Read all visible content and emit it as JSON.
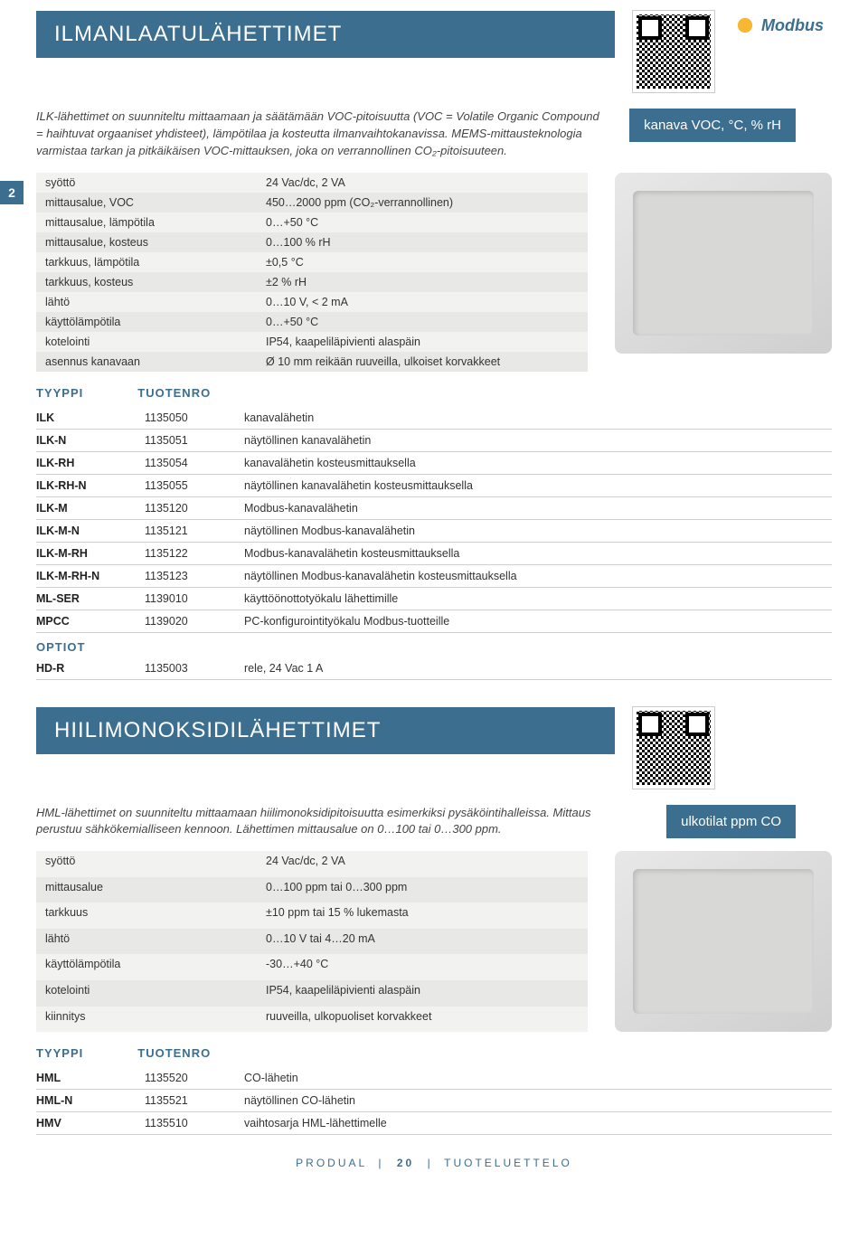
{
  "colors": {
    "primary": "#3b6e8f",
    "bg_light": "#f2f2f0",
    "bg_alt": "#e8e8e6",
    "text": "#333333",
    "border": "#cfcfcf"
  },
  "page_tab": "2",
  "modbus_label": "Modbus",
  "section1": {
    "title": "ILMANLAATULÄHETTIMET",
    "intro": "ILK-lähettimet on suunniteltu mittaamaan ja säätämään VOC-pitoisuutta (VOC = Volatile Organic Compound = haihtuvat orgaaniset yhdisteet), lämpötilaa ja kosteutta ilmanvaihtokanavissa. MEMS-mittausteknologia varmistaa tarkan ja pitkäikäisen VOC-mittauksen, joka on verrannollinen CO₂-pitoisuuteen.",
    "tag": "kanava VOC, °C, % rH",
    "specs": [
      [
        "syöttö",
        "24 Vac/dc, 2 VA"
      ],
      [
        "mittausalue, VOC",
        "450…2000 ppm (CO₂-verrannollinen)"
      ],
      [
        "mittausalue, lämpötila",
        "0…+50 °C"
      ],
      [
        "mittausalue, kosteus",
        "0…100 % rH"
      ],
      [
        "tarkkuus, lämpötila",
        "±0,5 °C"
      ],
      [
        "tarkkuus, kosteus",
        "±2 % rH"
      ],
      [
        "lähtö",
        "0…10 V, < 2 mA"
      ],
      [
        "käyttölämpötila",
        "0…+50 °C"
      ],
      [
        "kotelointi",
        "IP54, kaapeliläpivienti alaspäin"
      ],
      [
        "asennus kanavaan",
        "Ø 10 mm reikään ruuveilla, ulkoiset korvakkeet"
      ]
    ],
    "heads": {
      "type": "TYYPPI",
      "prodno": "TUOTENRO"
    },
    "products": [
      [
        "ILK",
        "1135050",
        "kanavalähetin"
      ],
      [
        "ILK-N",
        "1135051",
        "näytöllinen kanavalähetin"
      ],
      [
        "ILK-RH",
        "1135054",
        "kanavalähetin kosteusmittauksella"
      ],
      [
        "ILK-RH-N",
        "1135055",
        "näytöllinen kanavalähetin kosteusmittauksella"
      ],
      [
        "ILK-M",
        "1135120",
        "Modbus-kanavalähetin"
      ],
      [
        "ILK-M-N",
        "1135121",
        "näytöllinen Modbus-kanavalähetin"
      ],
      [
        "ILK-M-RH",
        "1135122",
        "Modbus-kanavalähetin kosteusmittauksella"
      ],
      [
        "ILK-M-RH-N",
        "1135123",
        "näytöllinen Modbus-kanavalähetin kosteusmittauksella"
      ],
      [
        "ML-SER",
        "1139010",
        "käyttöönottotyökalu lähettimille"
      ],
      [
        "MPCC",
        "1139020",
        "PC-konfigurointityökalu Modbus-tuotteille"
      ]
    ],
    "options_label": "OPTIOT",
    "options": [
      [
        "HD-R",
        "1135003",
        "rele, 24 Vac 1 A"
      ]
    ]
  },
  "section2": {
    "title": "HIILIMONOKSIDILÄHETTIMET",
    "intro": "HML-lähettimet on suunniteltu mittaamaan hiilimonoksidipitoisuutta esimerkiksi pysäköintihalleissa. Mittaus perustuu sähkökemialliseen kennoon. Lähettimen mittausalue on 0…100 tai 0…300 ppm.",
    "tag": "ulkotilat ppm CO",
    "specs": [
      [
        "syöttö",
        "24 Vac/dc, 2 VA"
      ],
      [
        "mittausalue",
        "0…100 ppm tai 0…300 ppm"
      ],
      [
        "tarkkuus",
        "±10 ppm tai 15 % lukemasta"
      ],
      [
        "lähtö",
        "0…10 V tai 4…20 mA"
      ],
      [
        "käyttölämpötila",
        "-30…+40 °C"
      ],
      [
        "kotelointi",
        "IP54, kaapeliläpivienti alaspäin"
      ],
      [
        "kiinnitys",
        "ruuveilla, ulkopuoliset korvakkeet"
      ]
    ],
    "heads": {
      "type": "TYYPPI",
      "prodno": "TUOTENRO"
    },
    "products": [
      [
        "HML",
        "1135520",
        "CO-lähetin"
      ],
      [
        "HML-N",
        "1135521",
        "näytöllinen CO-lähetin"
      ],
      [
        "HMV",
        "1135510",
        "vaihtosarja HML-lähettimelle"
      ]
    ]
  },
  "footer": {
    "brand": "PRODUAL",
    "page": "20",
    "doc": "TUOTELUETTELO"
  }
}
